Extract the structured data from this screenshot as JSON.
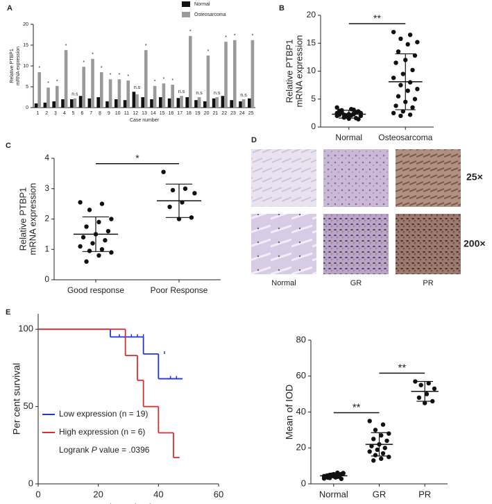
{
  "chart_data": [
    {
      "panel": "A",
      "type": "groupedbar",
      "y_label": [
        "Relative PTBP1",
        "mRNA expression"
      ],
      "x_label": "Case number",
      "categories": [
        "1",
        "2",
        "3",
        "4",
        "5",
        "6",
        "7",
        "8",
        "9",
        "10",
        "11",
        "12",
        "13",
        "14",
        "15",
        "16",
        "17",
        "18",
        "19",
        "20",
        "21",
        "22",
        "23",
        "24",
        "25"
      ],
      "series": [
        {
          "name": "Normal",
          "color": "#111111",
          "values": [
            1.0,
            1.2,
            1.5,
            2.0,
            2.0,
            2.8,
            2.2,
            2.5,
            1.5,
            2.0,
            1.8,
            3.8,
            2.5,
            2.0,
            2.5,
            2.2,
            2.3,
            2.5,
            1.8,
            1.5,
            2.2,
            2.8,
            1.8,
            1.5,
            2.2
          ]
        },
        {
          "name": "Osteosarcoma",
          "color": "#9a9a9a",
          "values": [
            8.5,
            4.8,
            5.2,
            13.8,
            2.2,
            9.8,
            11.7,
            8.5,
            6.8,
            6.8,
            6.5,
            3.2,
            13.8,
            5.2,
            5.8,
            5.5,
            2.8,
            17.2,
            2.5,
            12.5,
            2.5,
            15.8,
            16.2,
            2.0,
            16.2
          ]
        }
      ],
      "significance": [
        "*",
        "*",
        "*",
        "*",
        "n.s",
        "*",
        "*",
        "*",
        "*",
        "*",
        "*",
        "n.s",
        "*",
        "*",
        "*",
        "*",
        "n.s",
        "*",
        "n.s",
        "*",
        "n.s",
        "*",
        "*",
        "n.s",
        "*"
      ],
      "ylim": [
        0,
        20
      ],
      "yticks": [
        0,
        5,
        10,
        15,
        20
      ]
    },
    {
      "panel": "B",
      "type": "dotplot",
      "y_label": [
        "Relative PTBP1",
        "mRNA expression"
      ],
      "categories": [
        "Normal",
        "Osteosarcoma"
      ],
      "color": "#111111",
      "points": [
        [
          2.0,
          2.3,
          1.8,
          2.5,
          2.1,
          3.0,
          2.8,
          1.5,
          2.2,
          2.6,
          1.9,
          3.5,
          2.4,
          1.7,
          2.0,
          3.2,
          2.7,
          1.4,
          2.3,
          2.9,
          1.6,
          2.1,
          2.5,
          3.1,
          2.2
        ],
        [
          17.0,
          16.5,
          15.8,
          15.2,
          14.8,
          13.5,
          12.8,
          12.0,
          11.5,
          10.2,
          9.5,
          8.8,
          8.0,
          7.5,
          6.8,
          6.5,
          5.5,
          5.0,
          4.5,
          3.8,
          3.5,
          2.8,
          2.5,
          2.2,
          2.0
        ]
      ],
      "means": [
        2.3,
        8.1
      ],
      "sd": [
        0.7,
        5.0
      ],
      "brackets": [
        {
          "from": 0,
          "to": 1,
          "label": "**"
        }
      ],
      "ylim": [
        0,
        20
      ],
      "yticks": [
        0,
        5,
        10,
        15,
        20
      ]
    },
    {
      "panel": "C",
      "type": "dotplot",
      "y_label": [
        "Relative PTBP1",
        "mRNA expression"
      ],
      "categories": [
        "Good response",
        "Poor Response"
      ],
      "color": "#111111",
      "points": [
        [
          2.55,
          2.5,
          2.3,
          2.0,
          1.9,
          1.75,
          1.6,
          1.5,
          1.4,
          1.3,
          1.2,
          1.1,
          1.0,
          0.95,
          0.9,
          0.8,
          0.6
        ],
        [
          3.55,
          3.0,
          2.95,
          2.85,
          2.55,
          2.4,
          2.05,
          2.0
        ]
      ],
      "means": [
        1.5,
        2.6
      ],
      "sd": [
        0.57,
        0.55
      ],
      "brackets": [
        {
          "from": 0,
          "to": 1,
          "label": "*"
        }
      ],
      "ylim": [
        0,
        4
      ],
      "yticks": [
        0,
        1,
        2,
        3,
        4
      ]
    },
    {
      "panel": "E",
      "type": "step",
      "y_label": [
        "Per cent survival"
      ],
      "x_label": "Times (mo)",
      "legend": "lower left",
      "series": [
        {
          "name": "Low expression (n = 19)",
          "color": "#2233dd",
          "x": [
            0,
            24,
            35,
            40,
            48
          ],
          "y": [
            100,
            95,
            84,
            68,
            68
          ],
          "censor_x": [
            27,
            29,
            31,
            33,
            35,
            42,
            44,
            46
          ],
          "censor_y": [
            95,
            95,
            95,
            95,
            95,
            84,
            68,
            68
          ]
        },
        {
          "name": "High expression (n = 6)",
          "color": "#dd2a2a",
          "x": [
            0,
            29,
            33,
            35,
            40,
            45,
            47
          ],
          "y": [
            100,
            83,
            67,
            50,
            33,
            17,
            17
          ],
          "censor_x": [],
          "censor_y": []
        }
      ],
      "annotation": [
        "Logrank ",
        "P",
        " value = .0396"
      ],
      "xlim": [
        0,
        60
      ],
      "xticks": [
        0,
        20,
        40,
        60
      ],
      "ylim": [
        0,
        110
      ],
      "yticks": [
        0,
        50,
        100
      ]
    },
    {
      "type": "dotplot",
      "y_label": [
        "Mean of IOD"
      ],
      "categories": [
        "Normal",
        "GR",
        "PR"
      ],
      "color": "#111111",
      "points": [
        [
          3.0,
          4.0,
          5.0,
          6.0,
          4.5,
          3.5,
          5.5,
          4.2,
          3.8,
          5.2,
          4.8,
          3.2,
          6.2,
          4.4,
          5.8,
          3.6,
          4.6,
          2.8,
          5.4,
          4.1,
          3.9,
          5.1,
          4.3,
          4.7,
          3.3
        ],
        [
          35,
          33,
          30,
          28,
          27,
          25,
          24,
          22,
          21,
          20,
          19,
          18,
          17,
          16,
          15,
          14,
          13
        ],
        [
          57,
          56,
          55,
          53,
          50,
          48,
          46,
          45
        ]
      ],
      "means": [
        4.5,
        22,
        51.5
      ],
      "sd": [
        1.0,
        6.5,
        5.5
      ],
      "brackets": [
        {
          "from": 0,
          "to": 1,
          "label": "**"
        },
        {
          "from": 1,
          "to": 2,
          "label": "**"
        }
      ],
      "ylim": [
        0,
        80
      ],
      "yticks": [
        0,
        20,
        40,
        60,
        80
      ]
    }
  ],
  "image_panel": {
    "panel": "D",
    "row_labels": [
      "25×",
      "200×"
    ],
    "column_labels": [
      "Normal",
      "GR",
      "PR"
    ]
  }
}
